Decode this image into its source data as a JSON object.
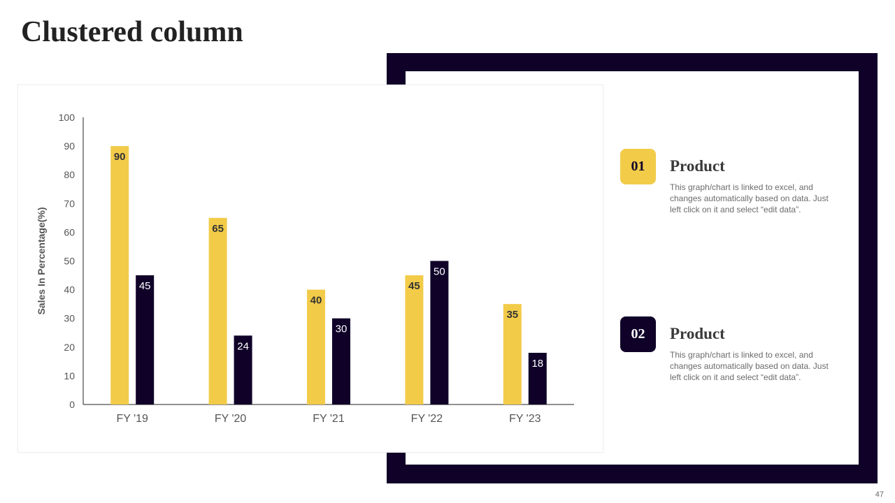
{
  "slide": {
    "title": "Clustered column",
    "page_number": "47"
  },
  "colors": {
    "yellow": "#f2cb49",
    "navy": "#0f0128",
    "frame": "#0f0128",
    "axis_text": "#555555"
  },
  "legend": [
    {
      "number": "01",
      "title": "Product",
      "description": "This graph/chart is linked to excel, and changes automatically based on data. Just left click on it and select “edit data”.",
      "color": "#f2cb49"
    },
    {
      "number": "02",
      "title": "Product",
      "description": "This graph/chart is linked to excel, and changes automatically based on data. Just left click on it and select “edit data”.",
      "color": "#0f0128"
    }
  ],
  "chart_data": {
    "type": "bar",
    "categories": [
      "FY '19",
      "FY '20",
      "FY '21",
      "FY '22",
      "FY '23"
    ],
    "series": [
      {
        "values": [
          90,
          65,
          40,
          45,
          35
        ],
        "color": "#f2cb49"
      },
      {
        "values": [
          45,
          24,
          30,
          50,
          18
        ],
        "color": "#0f0128"
      }
    ],
    "ylabel": "Sales In Percentage(%)",
    "xlabel": "",
    "ylim": [
      0,
      100
    ],
    "yticks": [
      0,
      10,
      20,
      30,
      40,
      50,
      60,
      70,
      80,
      90,
      100
    ],
    "grid": false,
    "data_labels": true
  }
}
